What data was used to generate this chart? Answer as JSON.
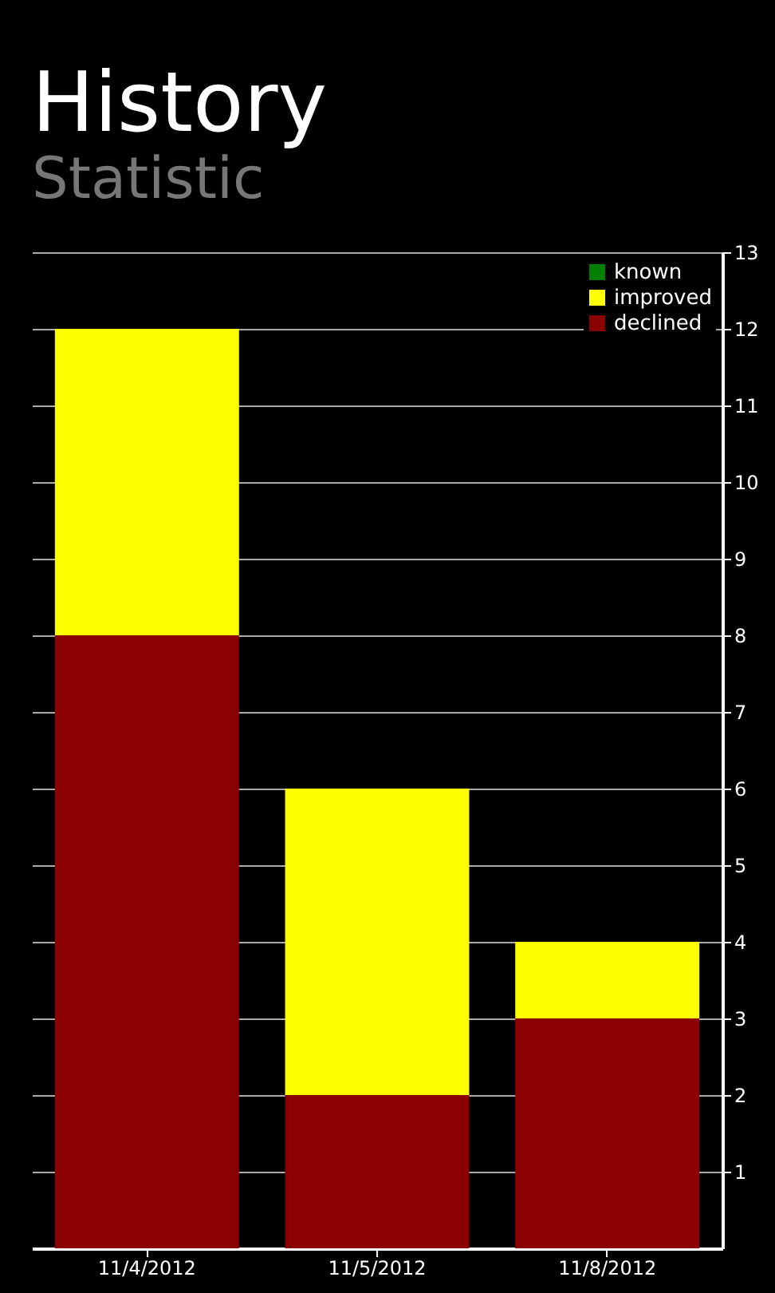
{
  "chart_data": {
    "type": "bar",
    "title": "History",
    "subtitle": "Statistic",
    "stacked": true,
    "categories": [
      "11/4/2012",
      "11/5/2012",
      "11/8/2012"
    ],
    "series": [
      {
        "name": "declined",
        "color": "#8b0000",
        "values": [
          8,
          2,
          3
        ]
      },
      {
        "name": "improved",
        "color": "#ffff00",
        "values": [
          4,
          4,
          1
        ]
      },
      {
        "name": "known",
        "color": "#008000",
        "values": [
          0,
          0,
          0
        ]
      }
    ],
    "ylim": [
      0,
      13
    ],
    "yticks": [
      1,
      2,
      3,
      4,
      5,
      6,
      7,
      8,
      9,
      10,
      11,
      12,
      13
    ],
    "grid": "y",
    "legend": "top right"
  }
}
